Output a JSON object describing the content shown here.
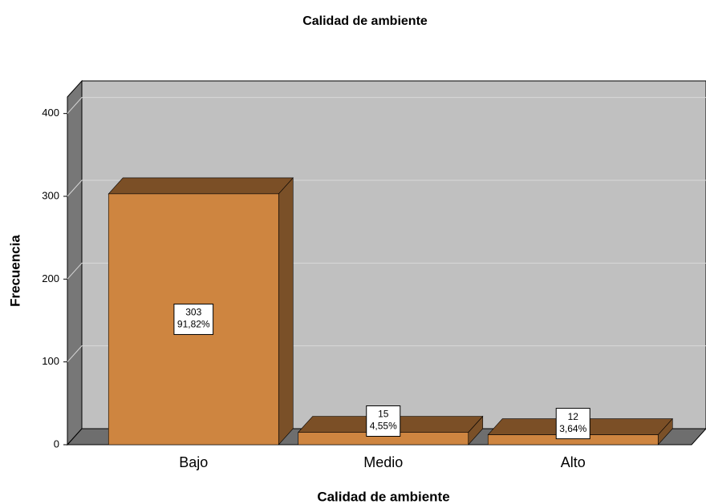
{
  "chart_data": {
    "type": "bar3d",
    "title": "Calidad de ambiente",
    "x_label": "Calidad de ambiente",
    "y_label": "Frecuencia",
    "categories": [
      "Bajo",
      "Medio",
      "Alto"
    ],
    "values": [
      303,
      15,
      12
    ],
    "percentages": [
      91.82,
      4.55,
      3.64
    ],
    "percentage_labels": [
      "91,82%",
      "4,55%",
      "3,64%"
    ],
    "color": "#ce8540",
    "ylim": [
      0,
      420
    ],
    "yticks": [
      0,
      100,
      200,
      300,
      400
    ],
    "grid": true
  }
}
